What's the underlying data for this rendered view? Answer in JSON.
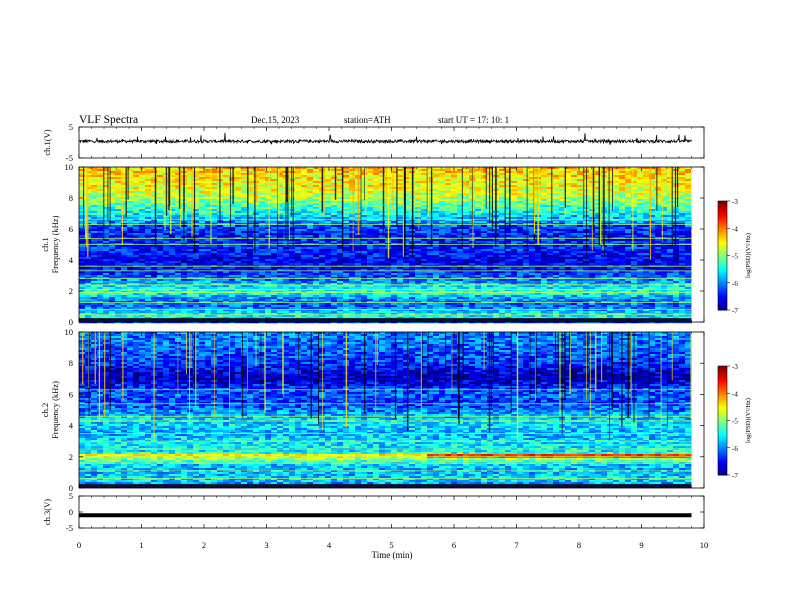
{
  "header": {
    "title": "VLF  Spectra",
    "date": "Dec.15, 2023",
    "station": "station=ATH",
    "start": "start  UT  =   17: 10: 1"
  },
  "chart_data": [
    {
      "type": "line",
      "panel": "ch1-waveform",
      "ylabel": "ch.1(V)",
      "ylim": [
        -5,
        5
      ],
      "yticks": [
        "5",
        "-5"
      ],
      "x_end_min": 9.8,
      "baseline_v": 0.4,
      "noise_amplitude_v": 0.6,
      "color": "#000000"
    },
    {
      "type": "heatmap",
      "panel": "ch1-spectrogram",
      "ylabel": "ch.1\nFrequency  (kHz)",
      "ylim": [
        0,
        10
      ],
      "yticks": [
        "0",
        "2",
        "4",
        "6",
        "8",
        "10"
      ],
      "x_end_min": 9.8,
      "colorbar": {
        "label": "log(PSD)(V²/Hz)",
        "range": [
          -7,
          -3
        ],
        "ticks": [
          "-3",
          "-4",
          "-5",
          "-6",
          "-7"
        ]
      },
      "profile": [
        {
          "f": 0.0,
          "v": -6.2
        },
        {
          "f": 0.3,
          "v": -5.4
        },
        {
          "f": 0.6,
          "v": -5.6
        },
        {
          "f": 1.0,
          "v": -6.1
        },
        {
          "f": 1.5,
          "v": -6.0
        },
        {
          "f": 1.9,
          "v": -5.3
        },
        {
          "f": 2.2,
          "v": -5.5
        },
        {
          "f": 2.6,
          "v": -5.9
        },
        {
          "f": 3.0,
          "v": -6.2
        },
        {
          "f": 3.5,
          "v": -6.5
        },
        {
          "f": 4.0,
          "v": -6.6
        },
        {
          "f": 4.5,
          "v": -6.4
        },
        {
          "f": 5.0,
          "v": -6.3
        },
        {
          "f": 5.5,
          "v": -6.4
        },
        {
          "f": 6.0,
          "v": -6.3
        },
        {
          "f": 6.5,
          "v": -5.9
        },
        {
          "f": 7.0,
          "v": -5.5
        },
        {
          "f": 7.5,
          "v": -5.2
        },
        {
          "f": 8.0,
          "v": -4.8
        },
        {
          "f": 8.5,
          "v": -4.6
        },
        {
          "f": 9.0,
          "v": -4.5
        },
        {
          "f": 9.5,
          "v": -4.4
        },
        {
          "f": 10.0,
          "v": -4.3
        }
      ],
      "tones_khz": [
        0.5,
        0.8,
        1.25,
        1.9,
        2.1,
        2.4,
        2.8,
        3.3,
        3.6,
        5.0,
        5.4,
        6.3,
        6.6
      ],
      "sferic_count": 110
    },
    {
      "type": "heatmap",
      "panel": "ch2-spectrogram",
      "ylabel": "ch.2\nFrequency  (kHz)",
      "ylim": [
        0,
        10
      ],
      "yticks": [
        "0",
        "2",
        "4",
        "6",
        "8",
        "10"
      ],
      "x_end_min": 9.8,
      "colorbar": {
        "label": "log(PSD)(V²/Hz)",
        "range": [
          -7,
          -3
        ],
        "ticks": [
          "-3",
          "-4",
          "-5",
          "-6",
          "-7"
        ]
      },
      "profile": [
        {
          "f": 0.0,
          "v": -6.3
        },
        {
          "f": 0.5,
          "v": -5.6
        },
        {
          "f": 1.0,
          "v": -5.8
        },
        {
          "f": 1.5,
          "v": -5.7
        },
        {
          "f": 2.0,
          "v": -4.6
        },
        {
          "f": 2.3,
          "v": -5.5
        },
        {
          "f": 3.0,
          "v": -5.6
        },
        {
          "f": 3.5,
          "v": -5.8
        },
        {
          "f": 4.0,
          "v": -5.6
        },
        {
          "f": 4.5,
          "v": -5.7
        },
        {
          "f": 5.0,
          "v": -6.0
        },
        {
          "f": 5.5,
          "v": -6.3
        },
        {
          "f": 6.0,
          "v": -6.1
        },
        {
          "f": 6.5,
          "v": -6.4
        },
        {
          "f": 7.0,
          "v": -6.8
        },
        {
          "f": 7.5,
          "v": -6.6
        },
        {
          "f": 8.0,
          "v": -6.3
        },
        {
          "f": 8.5,
          "v": -6.2
        },
        {
          "f": 9.0,
          "v": -6.1
        },
        {
          "f": 9.5,
          "v": -6.0
        },
        {
          "f": 10.0,
          "v": -6.0
        }
      ],
      "tones_khz": [
        0.6,
        1.1,
        1.6,
        2.0,
        2.5,
        3.0,
        3.5,
        4.3,
        4.6,
        5.4,
        6.3
      ],
      "sferic_count": 80
    },
    {
      "type": "line",
      "panel": "ch3-waveform",
      "ylabel": "ch.3(V)",
      "ylim": [
        -5,
        5
      ],
      "yticks": [
        "5",
        "0",
        "-5"
      ],
      "x_end_min": 9.8,
      "baseline_v": -1.0,
      "color": "#000000"
    }
  ],
  "xaxis": {
    "label": "Time  (min)",
    "ticks": [
      "0",
      "1",
      "2",
      "3",
      "4",
      "5",
      "6",
      "7",
      "8",
      "9",
      "10"
    ],
    "range": [
      0,
      10
    ]
  }
}
